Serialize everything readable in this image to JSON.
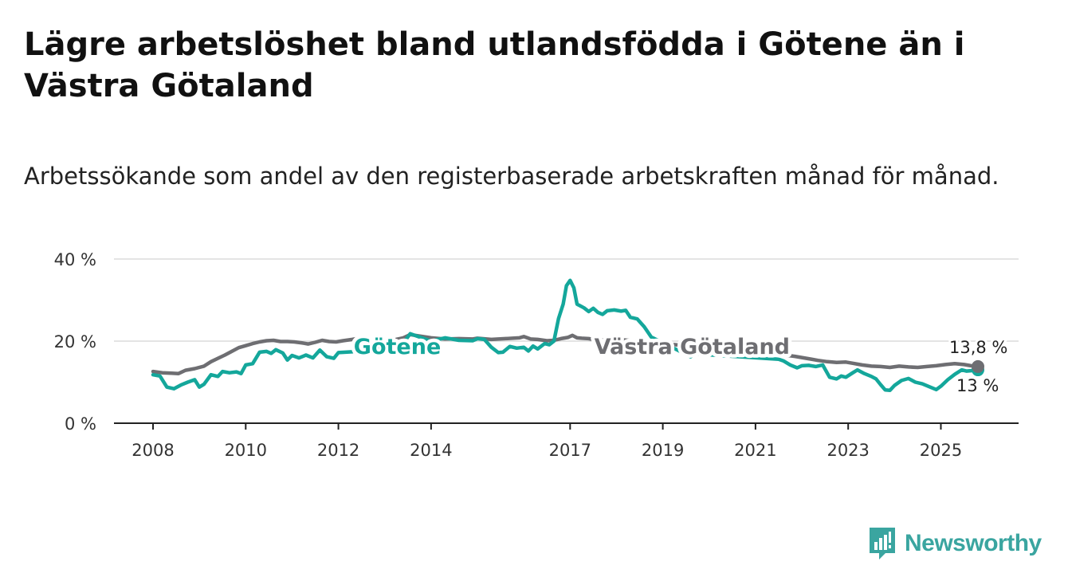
{
  "title": "Lägre arbetslöshet bland utlandsfödda i Götene än i Västra Götaland",
  "subtitle": "Arbetssökande som andel av den registerbaserade arbetskraften månad för månad.",
  "brand": {
    "name": "Newsworthy",
    "color": "#3aa5a0"
  },
  "chart_data": {
    "type": "line",
    "title": "Lägre arbetslöshet bland utlandsfödda i Götene än i Västra Götaland",
    "ylabel": "",
    "xlabel": "",
    "ylim": [
      0,
      40
    ],
    "y_ticks": [
      0,
      20,
      40
    ],
    "y_tick_labels": [
      "0 %",
      "20 %",
      "40 %"
    ],
    "xlim": [
      2008.0,
      2025.8
    ],
    "x_ticks": [
      2008,
      2010,
      2012,
      2014,
      2017,
      2019,
      2021,
      2023,
      2025
    ],
    "grid": true,
    "series": [
      {
        "name": "Götene",
        "color": "#14a79b",
        "label_position": [
          2013.5,
          19.2
        ],
        "end_label": "13 %",
        "end_value": 13.0,
        "points": [
          [
            2008.0,
            11.8
          ],
          [
            2008.15,
            11.5
          ],
          [
            2008.3,
            8.8
          ],
          [
            2008.45,
            8.4
          ],
          [
            2008.6,
            9.3
          ],
          [
            2008.75,
            10.0
          ],
          [
            2008.9,
            10.6
          ],
          [
            2009.0,
            8.8
          ],
          [
            2009.1,
            9.5
          ],
          [
            2009.25,
            11.8
          ],
          [
            2009.4,
            11.4
          ],
          [
            2009.5,
            12.6
          ],
          [
            2009.65,
            12.3
          ],
          [
            2009.8,
            12.5
          ],
          [
            2009.9,
            12.1
          ],
          [
            2010.0,
            14.2
          ],
          [
            2010.15,
            14.5
          ],
          [
            2010.3,
            17.3
          ],
          [
            2010.45,
            17.5
          ],
          [
            2010.55,
            17.0
          ],
          [
            2010.65,
            17.9
          ],
          [
            2010.8,
            17.1
          ],
          [
            2010.9,
            15.4
          ],
          [
            2011.0,
            16.5
          ],
          [
            2011.15,
            15.9
          ],
          [
            2011.3,
            16.6
          ],
          [
            2011.45,
            15.9
          ],
          [
            2011.6,
            17.8
          ],
          [
            2011.75,
            16.2
          ],
          [
            2011.9,
            15.8
          ],
          [
            2012.0,
            17.2
          ],
          [
            2012.15,
            17.3
          ],
          [
            2012.3,
            17.4
          ],
          [
            2012.45,
            19.1
          ],
          [
            2012.6,
            18.8
          ],
          [
            2012.75,
            19.3
          ],
          [
            2012.9,
            18.0
          ],
          [
            2013.0,
            19.0
          ],
          [
            2013.15,
            19.9
          ],
          [
            2013.3,
            19.6
          ],
          [
            2013.45,
            20.3
          ],
          [
            2013.55,
            21.8
          ],
          [
            2014.0,
            20.0
          ],
          [
            2014.3,
            20.8
          ],
          [
            2014.6,
            20.2
          ],
          [
            2014.9,
            20.1
          ],
          [
            2015.0,
            20.6
          ],
          [
            2015.15,
            20.4
          ],
          [
            2015.3,
            18.5
          ],
          [
            2015.45,
            17.2
          ],
          [
            2015.55,
            17.3
          ],
          [
            2015.7,
            18.7
          ],
          [
            2015.85,
            18.3
          ],
          [
            2016.0,
            18.5
          ],
          [
            2016.1,
            17.6
          ],
          [
            2016.2,
            18.8
          ],
          [
            2016.3,
            18.1
          ],
          [
            2016.45,
            19.4
          ],
          [
            2016.55,
            19.1
          ],
          [
            2016.65,
            20.0
          ],
          [
            2016.75,
            25.5
          ],
          [
            2016.85,
            29.0
          ],
          [
            2016.92,
            33.5
          ],
          [
            2017.0,
            34.8
          ],
          [
            2017.08,
            33.0
          ],
          [
            2017.15,
            29.0
          ],
          [
            2017.3,
            28.1
          ],
          [
            2017.4,
            27.2
          ],
          [
            2017.5,
            28.0
          ],
          [
            2017.6,
            27.0
          ],
          [
            2017.7,
            26.5
          ],
          [
            2017.8,
            27.4
          ],
          [
            2017.95,
            27.6
          ],
          [
            2018.1,
            27.3
          ],
          [
            2018.2,
            27.5
          ],
          [
            2018.3,
            25.8
          ],
          [
            2018.45,
            25.4
          ],
          [
            2018.6,
            23.5
          ],
          [
            2018.75,
            21.0
          ],
          [
            2019.5,
            16.8
          ],
          [
            2019.6,
            16.2
          ],
          [
            2019.7,
            16.9
          ],
          [
            2021.5,
            15.6
          ],
          [
            2021.6,
            15.2
          ],
          [
            2021.75,
            14.2
          ],
          [
            2021.9,
            13.5
          ],
          [
            2022.0,
            14.0
          ],
          [
            2022.15,
            14.1
          ],
          [
            2022.3,
            13.8
          ],
          [
            2022.45,
            14.2
          ],
          [
            2022.6,
            11.2
          ],
          [
            2022.75,
            10.8
          ],
          [
            2022.85,
            11.5
          ],
          [
            2022.95,
            11.2
          ],
          [
            2023.1,
            12.3
          ],
          [
            2023.2,
            13.0
          ],
          [
            2023.35,
            12.1
          ],
          [
            2023.5,
            11.4
          ],
          [
            2023.6,
            10.8
          ],
          [
            2023.7,
            9.4
          ],
          [
            2023.8,
            8.1
          ],
          [
            2023.9,
            8.0
          ],
          [
            2024.0,
            9.2
          ],
          [
            2024.15,
            10.4
          ],
          [
            2024.3,
            10.9
          ],
          [
            2024.45,
            10.0
          ],
          [
            2024.6,
            9.6
          ],
          [
            2024.75,
            8.9
          ],
          [
            2024.9,
            8.2
          ],
          [
            2025.0,
            9.0
          ],
          [
            2025.15,
            10.6
          ],
          [
            2025.3,
            11.9
          ],
          [
            2025.45,
            13.0
          ],
          [
            2025.55,
            12.7
          ],
          [
            2025.65,
            12.8
          ],
          [
            2025.8,
            13.0
          ]
        ]
      },
      {
        "name": "Västra Götaland",
        "color": "#6e6e72",
        "label_position": [
          2019.0,
          19.2
        ],
        "end_label": "13,8 %",
        "end_value": 13.8,
        "points": [
          [
            2008.0,
            12.6
          ],
          [
            2008.2,
            12.3
          ],
          [
            2008.4,
            12.2
          ],
          [
            2008.55,
            12.1
          ],
          [
            2008.7,
            12.9
          ],
          [
            2008.9,
            13.3
          ],
          [
            2009.1,
            13.9
          ],
          [
            2009.25,
            15.0
          ],
          [
            2009.4,
            15.8
          ],
          [
            2009.55,
            16.6
          ],
          [
            2009.7,
            17.5
          ],
          [
            2009.85,
            18.4
          ],
          [
            2010.0,
            18.9
          ],
          [
            2010.15,
            19.4
          ],
          [
            2010.3,
            19.8
          ],
          [
            2010.45,
            20.1
          ],
          [
            2010.6,
            20.2
          ],
          [
            2010.75,
            19.9
          ],
          [
            2010.9,
            19.9
          ],
          [
            2011.05,
            19.8
          ],
          [
            2011.2,
            19.6
          ],
          [
            2011.35,
            19.3
          ],
          [
            2011.5,
            19.7
          ],
          [
            2011.65,
            20.2
          ],
          [
            2011.8,
            19.9
          ],
          [
            2011.95,
            19.8
          ],
          [
            2012.1,
            20.1
          ],
          [
            2012.3,
            20.4
          ],
          [
            2012.45,
            20.7
          ],
          [
            2012.6,
            20.0
          ],
          [
            2012.75,
            19.9
          ],
          [
            2012.9,
            19.8
          ],
          [
            2013.05,
            20.2
          ],
          [
            2013.2,
            20.3
          ],
          [
            2013.4,
            20.8
          ],
          [
            2013.55,
            21.6
          ],
          [
            2014.0,
            20.8
          ],
          [
            2014.3,
            20.5
          ],
          [
            2014.6,
            20.6
          ],
          [
            2014.9,
            20.5
          ],
          [
            2015.0,
            20.7
          ],
          [
            2015.3,
            20.4
          ],
          [
            2015.6,
            20.6
          ],
          [
            2015.9,
            20.8
          ],
          [
            2016.0,
            21.1
          ],
          [
            2016.15,
            20.5
          ],
          [
            2016.3,
            20.4
          ],
          [
            2016.5,
            20.1
          ],
          [
            2016.65,
            20.2
          ],
          [
            2016.8,
            20.6
          ],
          [
            2016.95,
            20.9
          ],
          [
            2017.05,
            21.4
          ],
          [
            2017.15,
            20.8
          ],
          [
            2017.25,
            20.7
          ],
          [
            2017.4,
            20.6
          ],
          [
            2017.55,
            20.3
          ],
          [
            2017.65,
            20.1
          ],
          [
            2017.75,
            20.4
          ],
          [
            2017.85,
            20.6
          ],
          [
            2021.5,
            16.8
          ],
          [
            2021.7,
            16.5
          ],
          [
            2021.85,
            16.3
          ],
          [
            2022.0,
            16.0
          ],
          [
            2022.15,
            15.7
          ],
          [
            2022.35,
            15.3
          ],
          [
            2022.55,
            15.0
          ],
          [
            2022.75,
            14.8
          ],
          [
            2022.95,
            14.9
          ],
          [
            2023.1,
            14.6
          ],
          [
            2023.3,
            14.2
          ],
          [
            2023.5,
            13.9
          ],
          [
            2023.7,
            13.8
          ],
          [
            2023.9,
            13.6
          ],
          [
            2024.1,
            13.9
          ],
          [
            2024.3,
            13.7
          ],
          [
            2024.5,
            13.6
          ],
          [
            2024.7,
            13.8
          ],
          [
            2024.9,
            14.0
          ],
          [
            2025.1,
            14.3
          ],
          [
            2025.3,
            14.5
          ],
          [
            2025.5,
            14.3
          ],
          [
            2025.65,
            14.0
          ],
          [
            2025.8,
            13.8
          ]
        ]
      }
    ]
  }
}
